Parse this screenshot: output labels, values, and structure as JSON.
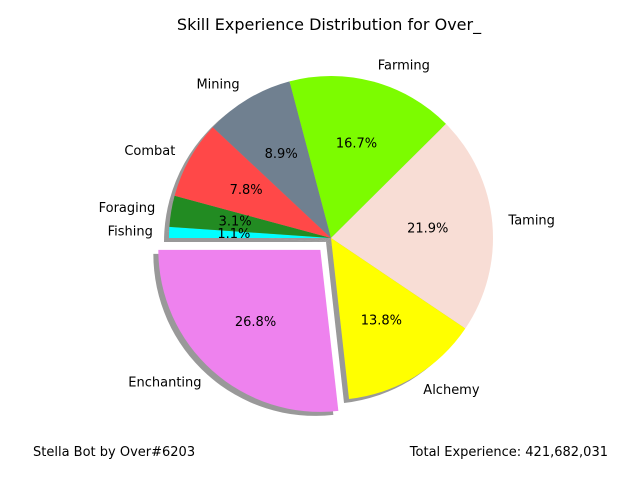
{
  "chart_data": {
    "type": "pie",
    "title": "Skill Experience Distribution for Over_",
    "slices": [
      {
        "label": "Fishing",
        "percent": 1.1,
        "pct_label": "1.1%",
        "color": "#00ffff",
        "explode": false
      },
      {
        "label": "Foraging",
        "percent": 3.1,
        "pct_label": "3.1%",
        "color": "#228b22",
        "explode": false
      },
      {
        "label": "Combat",
        "percent": 7.8,
        "pct_label": "7.8%",
        "color": "#ff4848",
        "explode": false
      },
      {
        "label": "Mining",
        "percent": 8.9,
        "pct_label": "8.9%",
        "color": "#708090",
        "explode": false
      },
      {
        "label": "Farming",
        "percent": 16.7,
        "pct_label": "16.7%",
        "color": "#7cfc00",
        "explode": false
      },
      {
        "label": "Taming",
        "percent": 21.9,
        "pct_label": "21.9%",
        "color": "#f8ddd5",
        "explode": false
      },
      {
        "label": "Alchemy",
        "percent": 13.8,
        "pct_label": "13.8%",
        "color": "#ffff00",
        "explode": false
      },
      {
        "label": "Enchanting",
        "percent": 26.8,
        "pct_label": "26.8%",
        "color": "#ee82ee",
        "explode": true
      }
    ],
    "start_angle_deg": 180,
    "direction": "clockwise",
    "shadow": true
  },
  "footer": {
    "left": "Stella Bot by Over#6203",
    "right": "Total Experience: 421,682,031"
  }
}
